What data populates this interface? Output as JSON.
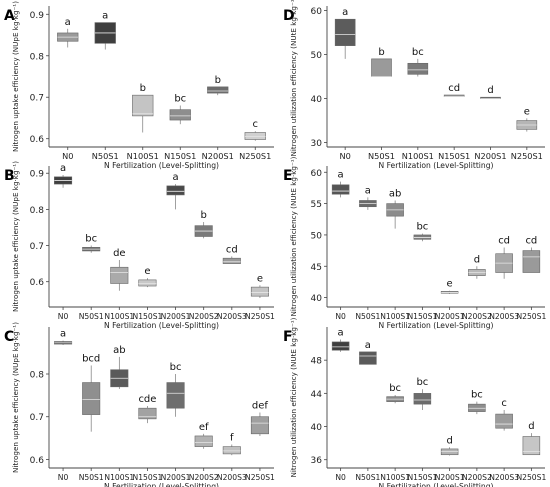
{
  "chart_data": [
    {
      "panel": "A",
      "type": "boxplot",
      "xlabel": "N Fertilization (Level-Splitting)",
      "ylabel": "Nitrogen uptake efficiency (NUpE kg·kg⁻¹)",
      "ylim": [
        0.58,
        0.92
      ],
      "yticks": [
        "0.6",
        "0.7",
        "0.8",
        "0.9"
      ],
      "ytick_values": [
        0.6,
        0.7,
        0.8,
        0.9
      ],
      "categories": [
        "N0",
        "N50S1",
        "N100S1",
        "N150S1",
        "N200S1",
        "N250S1"
      ],
      "boxes": [
        {
          "whisker_low": 0.82,
          "q1": 0.835,
          "median": 0.845,
          "q3": 0.855,
          "whisker_high": 0.865,
          "letter": "a",
          "shade": "#9a9a9a"
        },
        {
          "whisker_low": 0.815,
          "q1": 0.83,
          "median": 0.855,
          "q3": 0.88,
          "whisker_high": 0.88,
          "letter": "a",
          "shade": "#3f3f3f"
        },
        {
          "whisker_low": 0.615,
          "q1": 0.655,
          "median": 0.66,
          "q3": 0.705,
          "whisker_high": 0.705,
          "letter": "b",
          "shade": "#c4c4c4"
        },
        {
          "whisker_low": 0.635,
          "q1": 0.645,
          "median": 0.655,
          "q3": 0.67,
          "whisker_high": 0.68,
          "letter": "bc",
          "shade": "#8e8e8e"
        },
        {
          "whisker_low": 0.705,
          "q1": 0.71,
          "median": 0.715,
          "q3": 0.725,
          "whisker_high": 0.725,
          "letter": "b",
          "shade": "#6d6d6d"
        },
        {
          "whisker_low": 0.595,
          "q1": 0.598,
          "median": 0.605,
          "q3": 0.615,
          "whisker_high": 0.618,
          "letter": "c",
          "shade": "#d0d0d0"
        }
      ]
    },
    {
      "panel": "D",
      "type": "boxplot",
      "xlabel": "N Fertilization (Level-Splitting)",
      "ylabel": "Nitrogen utilization efficiency (NUtE kg·kg⁻¹)",
      "ylim": [
        29,
        61
      ],
      "yticks": [
        "30",
        "40",
        "50",
        "60"
      ],
      "ytick_values": [
        30,
        40,
        50,
        60
      ],
      "categories": [
        "N0",
        "N50S1",
        "N100S1",
        "N150S1",
        "N200S1",
        "N250S1"
      ],
      "boxes": [
        {
          "whisker_low": 49,
          "q1": 52,
          "median": 54.5,
          "q3": 58,
          "whisker_high": 58,
          "letter": "a",
          "shade": "#5c5c5c"
        },
        {
          "whisker_low": 45,
          "q1": 45,
          "median": 45,
          "q3": 49,
          "whisker_high": 49,
          "letter": "b",
          "shade": "#9a9a9a"
        },
        {
          "whisker_low": 45,
          "q1": 45.5,
          "median": 46.5,
          "q3": 48,
          "whisker_high": 49,
          "letter": "bc",
          "shade": "#7a7a7a"
        },
        {
          "whisker_low": 40.5,
          "q1": 40.5,
          "median": 40.5,
          "q3": 40.8,
          "whisker_high": 40.8,
          "letter": "cd",
          "shade": "#8a8a8a"
        },
        {
          "whisker_low": 40,
          "q1": 40,
          "median": 40,
          "q3": 40.3,
          "whisker_high": 40.3,
          "letter": "d",
          "shade": "#6f6f6f"
        },
        {
          "whisker_low": 32.5,
          "q1": 33,
          "median": 34,
          "q3": 35,
          "whisker_high": 35.5,
          "letter": "e",
          "shade": "#b5b5b5"
        }
      ]
    },
    {
      "panel": "B",
      "type": "boxplot",
      "xlabel": "N Fertilization (Level-Splitting)",
      "ylabel": "Nitrogen uptake efficiency (NUpE kg·kg⁻¹)",
      "ylim": [
        0.53,
        0.92
      ],
      "yticks": [
        "0.6",
        "0.7",
        "0.8",
        "0.9"
      ],
      "ytick_values": [
        0.6,
        0.7,
        0.8,
        0.9
      ],
      "categories": [
        "N0",
        "N50S1",
        "N100S1",
        "N150S1",
        "N200S1",
        "N200S2",
        "N200S3",
        "N250S1"
      ],
      "boxes": [
        {
          "whisker_low": 0.86,
          "q1": 0.87,
          "median": 0.88,
          "q3": 0.89,
          "whisker_high": 0.895,
          "letter": "a",
          "shade": "#3f3f3f"
        },
        {
          "whisker_low": 0.68,
          "q1": 0.685,
          "median": 0.69,
          "q3": 0.695,
          "whisker_high": 0.7,
          "letter": "bc",
          "shade": "#6a6a6a"
        },
        {
          "whisker_low": 0.575,
          "q1": 0.595,
          "median": 0.625,
          "q3": 0.64,
          "whisker_high": 0.66,
          "letter": "de",
          "shade": "#aaaaaa"
        },
        {
          "whisker_low": 0.585,
          "q1": 0.588,
          "median": 0.595,
          "q3": 0.605,
          "whisker_high": 0.61,
          "letter": "e",
          "shade": "#c8c8c8"
        },
        {
          "whisker_low": 0.8,
          "q1": 0.84,
          "median": 0.85,
          "q3": 0.865,
          "whisker_high": 0.87,
          "letter": "a",
          "shade": "#4a4a4a"
        },
        {
          "whisker_low": 0.72,
          "q1": 0.725,
          "median": 0.74,
          "q3": 0.755,
          "whisker_high": 0.765,
          "letter": "b",
          "shade": "#7a7a7a"
        },
        {
          "whisker_low": 0.65,
          "q1": 0.65,
          "median": 0.655,
          "q3": 0.665,
          "whisker_high": 0.67,
          "letter": "cd",
          "shade": "#9a9a9a"
        },
        {
          "whisker_low": 0.555,
          "q1": 0.56,
          "median": 0.57,
          "q3": 0.585,
          "whisker_high": 0.59,
          "letter": "e",
          "shade": "#c4c4c4"
        }
      ]
    },
    {
      "panel": "E",
      "type": "boxplot",
      "xlabel": "N Fertilization (Level-Splitting)",
      "ylabel": "Nitrogen utilization efficiency (NUtE kg·kg⁻¹)",
      "ylim": [
        38.5,
        61
      ],
      "yticks": [
        "40",
        "45",
        "50",
        "55",
        "60"
      ],
      "ytick_values": [
        40,
        45,
        50,
        55,
        60
      ],
      "categories": [
        "N0",
        "N50S1",
        "N100S1",
        "N150S1",
        "N200S1",
        "N200S2",
        "N200S3",
        "N250S1"
      ],
      "boxes": [
        {
          "whisker_low": 56,
          "q1": 56.5,
          "median": 57,
          "q3": 58,
          "whisker_high": 58.5,
          "letter": "a",
          "shade": "#555555"
        },
        {
          "whisker_low": 54,
          "q1": 54.5,
          "median": 55,
          "q3": 55.5,
          "whisker_high": 56,
          "letter": "a",
          "shade": "#6a6a6a"
        },
        {
          "whisker_low": 51,
          "q1": 53,
          "median": 54,
          "q3": 55,
          "whisker_high": 55.5,
          "letter": "ab",
          "shade": "#8c8c8c"
        },
        {
          "whisker_low": 49,
          "q1": 49.3,
          "median": 49.6,
          "q3": 50,
          "whisker_high": 50.2,
          "letter": "bc",
          "shade": "#7d7d7d"
        },
        {
          "whisker_low": 40.6,
          "q1": 40.7,
          "median": 40.8,
          "q3": 41,
          "whisker_high": 41.1,
          "letter": "e",
          "shade": "#9f9f9f"
        },
        {
          "whisker_low": 43,
          "q1": 43.5,
          "median": 44,
          "q3": 44.5,
          "whisker_high": 45,
          "letter": "d",
          "shade": "#b8b8b8"
        },
        {
          "whisker_low": 43,
          "q1": 44,
          "median": 45.5,
          "q3": 47,
          "whisker_high": 48,
          "letter": "cd",
          "shade": "#a8a8a8"
        },
        {
          "whisker_low": 44,
          "q1": 44,
          "median": 46.5,
          "q3": 47.5,
          "whisker_high": 48,
          "letter": "cd",
          "shade": "#9a9a9a"
        }
      ]
    },
    {
      "panel": "C",
      "type": "boxplot",
      "xlabel": "N Fertilization (Level-Splitting)",
      "ylabel": "Nitrogen uptake efficiency (NUpE kg·kg⁻¹)",
      "ylim": [
        0.58,
        0.91
      ],
      "yticks": [
        "0.6",
        "0.7",
        "0.8"
      ],
      "ytick_values": [
        0.6,
        0.7,
        0.8
      ],
      "categories": [
        "N0",
        "N50S1",
        "N100S1",
        "N150S1",
        "N200S1",
        "N200S2",
        "N200S3",
        "N250S1"
      ],
      "boxes": [
        {
          "whisker_low": 0.868,
          "q1": 0.87,
          "median": 0.873,
          "q3": 0.876,
          "whisker_high": 0.878,
          "letter": "a",
          "shade": "#444444"
        },
        {
          "whisker_low": 0.665,
          "q1": 0.705,
          "median": 0.74,
          "q3": 0.78,
          "whisker_high": 0.82,
          "letter": "bcd",
          "shade": "#8f8f8f"
        },
        {
          "whisker_low": 0.765,
          "q1": 0.77,
          "median": 0.79,
          "q3": 0.81,
          "whisker_high": 0.84,
          "letter": "ab",
          "shade": "#5a5a5a"
        },
        {
          "whisker_low": 0.685,
          "q1": 0.695,
          "median": 0.7,
          "q3": 0.72,
          "whisker_high": 0.725,
          "letter": "cde",
          "shade": "#a2a2a2"
        },
        {
          "whisker_low": 0.7,
          "q1": 0.72,
          "median": 0.755,
          "q3": 0.78,
          "whisker_high": 0.8,
          "letter": "bc",
          "shade": "#6e6e6e"
        },
        {
          "whisker_low": 0.625,
          "q1": 0.63,
          "median": 0.64,
          "q3": 0.655,
          "whisker_high": 0.66,
          "letter": "ef",
          "shade": "#b2b2b2"
        },
        {
          "whisker_low": 0.61,
          "q1": 0.613,
          "median": 0.62,
          "q3": 0.63,
          "whisker_high": 0.635,
          "letter": "f",
          "shade": "#c0c0c0"
        },
        {
          "whisker_low": 0.655,
          "q1": 0.66,
          "median": 0.685,
          "q3": 0.7,
          "whisker_high": 0.71,
          "letter": "def",
          "shade": "#a0a0a0"
        }
      ]
    },
    {
      "panel": "F",
      "type": "boxplot",
      "xlabel": "N Fertilization (Level-Splitting)",
      "ylabel": "Nitrogen utilization efficiency (NUtE kg·kg⁻¹)",
      "ylim": [
        35,
        52
      ],
      "yticks": [
        "36",
        "40",
        "44",
        "48"
      ],
      "ytick_values": [
        36,
        40,
        44,
        48
      ],
      "categories": [
        "N0",
        "N50S1",
        "N100S1",
        "N150S1",
        "N200S1",
        "N200S2",
        "N200S3",
        "N250S1"
      ],
      "boxes": [
        {
          "whisker_low": 49,
          "q1": 49.2,
          "median": 49.6,
          "q3": 50.2,
          "whisker_high": 50.5,
          "letter": "a",
          "shade": "#3f3f3f"
        },
        {
          "whisker_low": 47.5,
          "q1": 47.5,
          "median": 48.5,
          "q3": 49,
          "whisker_high": 49,
          "letter": "a",
          "shade": "#5a5a5a"
        },
        {
          "whisker_low": 42.8,
          "q1": 43,
          "median": 43.3,
          "q3": 43.6,
          "whisker_high": 43.8,
          "letter": "bc",
          "shade": "#8a8a8a"
        },
        {
          "whisker_low": 42,
          "q1": 42.7,
          "median": 43.2,
          "q3": 44,
          "whisker_high": 44.5,
          "letter": "bc",
          "shade": "#6c6c6c"
        },
        {
          "whisker_low": 36.5,
          "q1": 36.6,
          "median": 37,
          "q3": 37.3,
          "whisker_high": 37.5,
          "letter": "d",
          "shade": "#b4b4b4"
        },
        {
          "whisker_low": 41.5,
          "q1": 41.8,
          "median": 42.2,
          "q3": 42.7,
          "whisker_high": 43,
          "letter": "bc",
          "shade": "#8e8e8e"
        },
        {
          "whisker_low": 39.5,
          "q1": 39.8,
          "median": 40.3,
          "q3": 41.5,
          "whisker_high": 42,
          "letter": "c",
          "shade": "#9c9c9c"
        },
        {
          "whisker_low": 36.6,
          "q1": 36.6,
          "median": 37,
          "q3": 38.8,
          "whisker_high": 39.2,
          "letter": "d",
          "shade": "#c6c6c6"
        }
      ]
    }
  ]
}
